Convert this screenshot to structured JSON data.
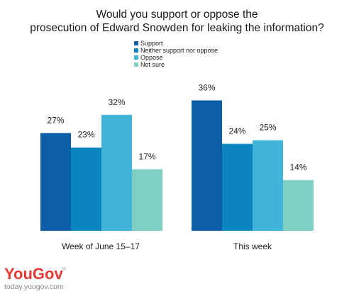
{
  "chart_data": {
    "type": "bar",
    "title_lines": [
      "Would you support or oppose the",
      "prosecution of Edward Snowden for leaking the information?"
    ],
    "categories": [
      "Week of June 15–17",
      "This week"
    ],
    "series": [
      {
        "name": "Support",
        "values": [
          27,
          36
        ],
        "color": "#0d5ea8"
      },
      {
        "name": "Neither support nor oppose",
        "values": [
          23,
          24
        ],
        "color": "#0a85bf"
      },
      {
        "name": "Oppose",
        "values": [
          32,
          25
        ],
        "color": "#41b4d9"
      },
      {
        "name": "Not sure",
        "values": [
          17,
          14
        ],
        "color": "#7fcfc4"
      }
    ],
    "value_suffix": "%",
    "ylim": [
      0,
      40
    ],
    "legend_position": "top-center",
    "grid": false
  },
  "branding": {
    "logo_text": "YouGov",
    "registered_mark": "®",
    "url": "today.yougov.com",
    "logo_color": "#e53935"
  }
}
